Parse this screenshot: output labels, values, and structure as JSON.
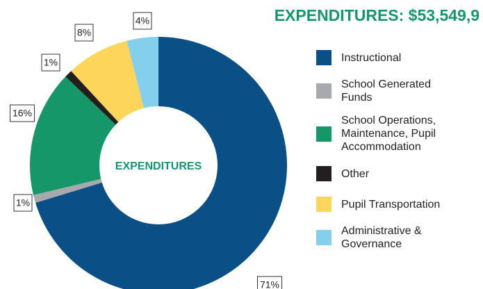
{
  "chart_data": {
    "type": "donut",
    "title": "EXPENDITURES: $53,549,9",
    "center_label": "EXPENDITURES",
    "categories": [
      "Instructional",
      "School Generated Funds",
      "School Operations, Maintenance, Pupil Accommodation",
      "Other",
      "Pupil Transportation",
      "Administrative & Governance"
    ],
    "values": [
      71,
      1,
      16,
      1,
      8,
      4
    ],
    "value_labels": [
      "71%",
      "1%",
      "16%",
      "1%",
      "8%",
      "4%"
    ],
    "colors": [
      "#0b4f87",
      "#a7a9ac",
      "#16976a",
      "#231f20",
      "#fdd55a",
      "#84cfec"
    ]
  }
}
